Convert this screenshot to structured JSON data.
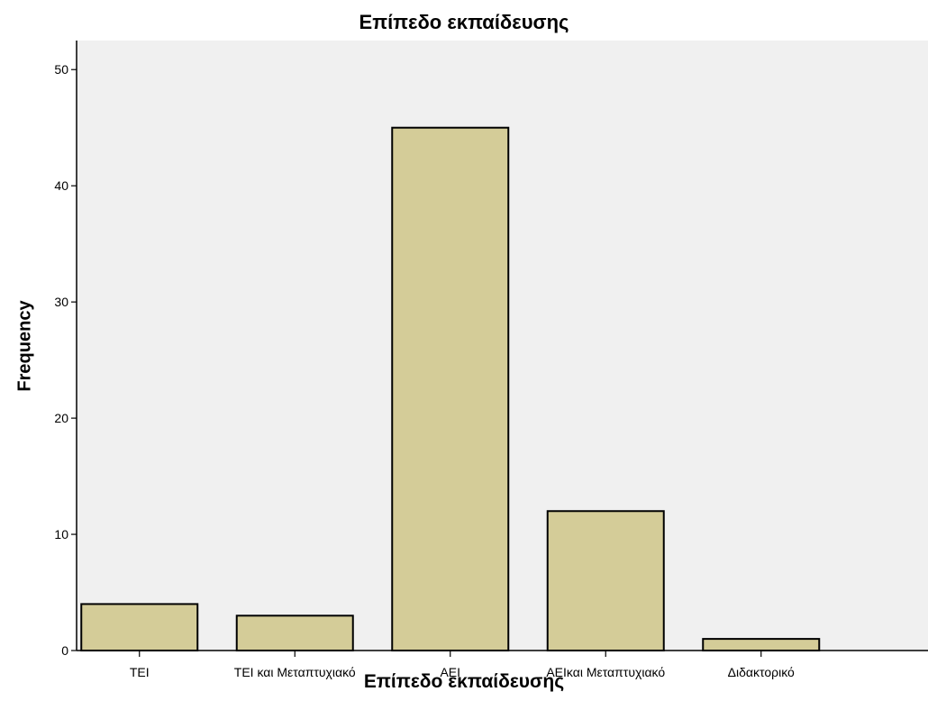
{
  "chart_data": {
    "type": "bar",
    "title": "Επίπεδο εκπαίδευσης",
    "xlabel": "Επίπεδο εκπαίδευσης",
    "ylabel": "Frequency",
    "categories": [
      "TEI",
      "TEI και Μεταπτυχιακό",
      "AEI",
      "AEIκαι Μεταπτυχιακό",
      "Διδακτορικό"
    ],
    "values": [
      4,
      3,
      45,
      12,
      1
    ],
    "ylim": [
      0,
      52.5
    ],
    "yticks": [
      0,
      10,
      20,
      30,
      40,
      50
    ],
    "grid": false,
    "colors": {
      "bar_fill": "#d4cc98",
      "bar_stroke": "#000000",
      "plot_background": "#f0f0f0"
    }
  }
}
